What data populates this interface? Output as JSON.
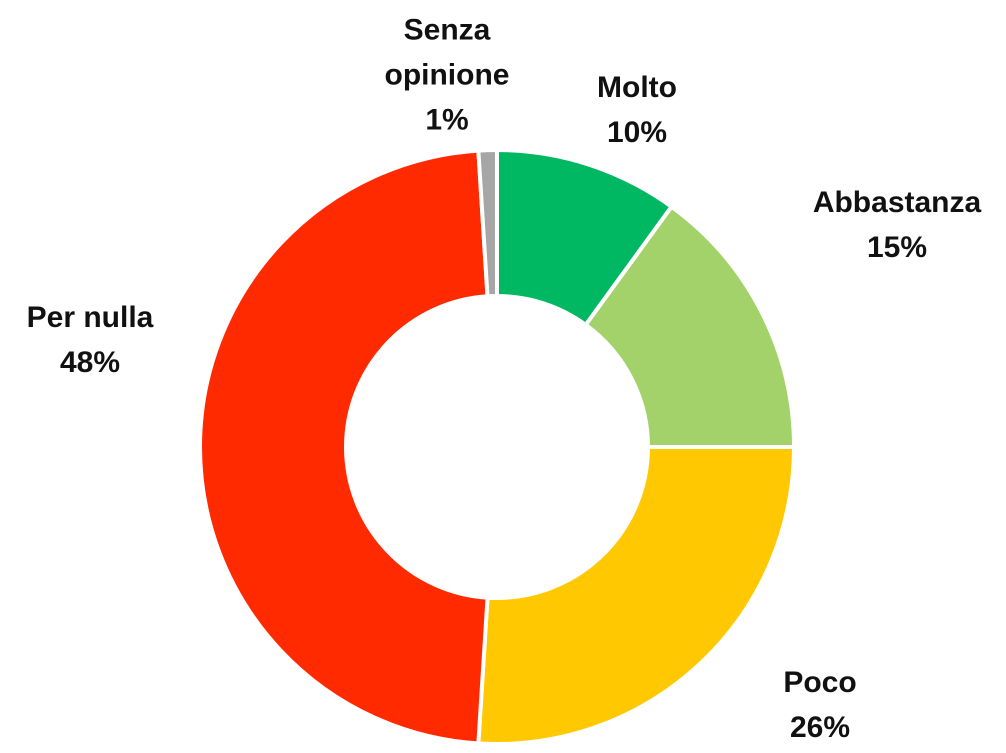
{
  "chart_data": {
    "type": "donut",
    "categories": [
      "Molto",
      "Abbastanza",
      "Poco",
      "Per nulla",
      "Senza opinione"
    ],
    "values": [
      10,
      15,
      26,
      48,
      1
    ],
    "value_labels": [
      "10%",
      "15%",
      "26%",
      "48%",
      "1%"
    ],
    "colors": [
      "#00b862",
      "#a3d16a",
      "#ffc800",
      "#ff2a00",
      "#a6a6a6"
    ]
  }
}
